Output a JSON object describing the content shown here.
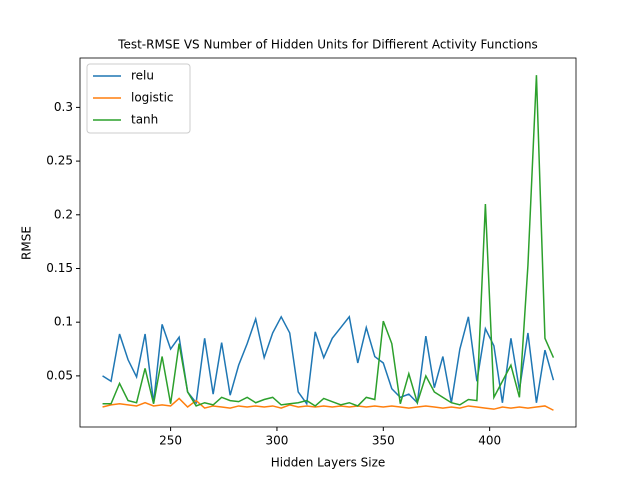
{
  "chart_data": {
    "type": "line",
    "title": "Test-RMSE VS Number of Hidden Units for Diffierent Activity Functions",
    "x_label": "Hidden Layers Size",
    "y_label": "RMSE",
    "x": [
      218,
      222,
      226,
      230,
      234,
      238,
      242,
      246,
      250,
      254,
      258,
      262,
      266,
      270,
      274,
      278,
      282,
      286,
      290,
      294,
      298,
      302,
      306,
      310,
      314,
      318,
      322,
      326,
      330,
      334,
      338,
      342,
      346,
      350,
      354,
      358,
      362,
      366,
      370,
      374,
      378,
      382,
      386,
      390,
      394,
      398,
      402,
      406,
      410,
      414,
      418,
      422,
      426,
      430
    ],
    "series": [
      {
        "name": "relu",
        "color": "#1f77b4",
        "values": [
          0.05,
          0.045,
          0.089,
          0.065,
          0.049,
          0.089,
          0.025,
          0.098,
          0.075,
          0.086,
          0.035,
          0.025,
          0.085,
          0.033,
          0.081,
          0.032,
          0.06,
          0.08,
          0.103,
          0.067,
          0.09,
          0.105,
          0.09,
          0.035,
          0.024,
          0.091,
          0.067,
          0.085,
          0.095,
          0.105,
          0.062,
          0.095,
          0.068,
          0.062,
          0.038,
          0.03,
          0.033,
          0.025,
          0.087,
          0.039,
          0.068,
          0.025,
          0.075,
          0.105,
          0.045,
          0.094,
          0.078,
          0.025,
          0.085,
          0.037,
          0.09,
          0.025,
          0.074,
          0.046
        ]
      },
      {
        "name": "logistic",
        "color": "#ff7f0e",
        "values": [
          0.021,
          0.023,
          0.024,
          0.023,
          0.022,
          0.025,
          0.022,
          0.023,
          0.022,
          0.029,
          0.021,
          0.027,
          0.02,
          0.022,
          0.021,
          0.02,
          0.022,
          0.021,
          0.022,
          0.021,
          0.022,
          0.02,
          0.023,
          0.021,
          0.022,
          0.021,
          0.022,
          0.021,
          0.022,
          0.021,
          0.022,
          0.021,
          0.022,
          0.021,
          0.022,
          0.021,
          0.02,
          0.021,
          0.022,
          0.021,
          0.02,
          0.021,
          0.02,
          0.022,
          0.021,
          0.02,
          0.019,
          0.021,
          0.02,
          0.021,
          0.02,
          0.021,
          0.022,
          0.018
        ]
      },
      {
        "name": "tanh",
        "color": "#2ca02c",
        "values": [
          0.024,
          0.024,
          0.043,
          0.027,
          0.025,
          0.057,
          0.024,
          0.068,
          0.024,
          0.08,
          0.035,
          0.022,
          0.025,
          0.023,
          0.03,
          0.027,
          0.026,
          0.03,
          0.025,
          0.028,
          0.03,
          0.023,
          0.024,
          0.025,
          0.027,
          0.022,
          0.029,
          0.026,
          0.023,
          0.025,
          0.022,
          0.03,
          0.028,
          0.101,
          0.08,
          0.024,
          0.052,
          0.025,
          0.05,
          0.035,
          0.03,
          0.025,
          0.023,
          0.028,
          0.027,
          0.21,
          0.03,
          0.045,
          0.06,
          0.03,
          0.153,
          0.33,
          0.085,
          0.067
        ]
      }
    ],
    "xlim": [
      207.4,
      440.6
    ],
    "ylim": [
      0.0024,
      0.346
    ],
    "xticks": [
      250,
      300,
      350,
      400
    ],
    "yticks": [
      0.05,
      0.1,
      0.15,
      0.2,
      0.25,
      0.3
    ],
    "legend": "upper left"
  }
}
